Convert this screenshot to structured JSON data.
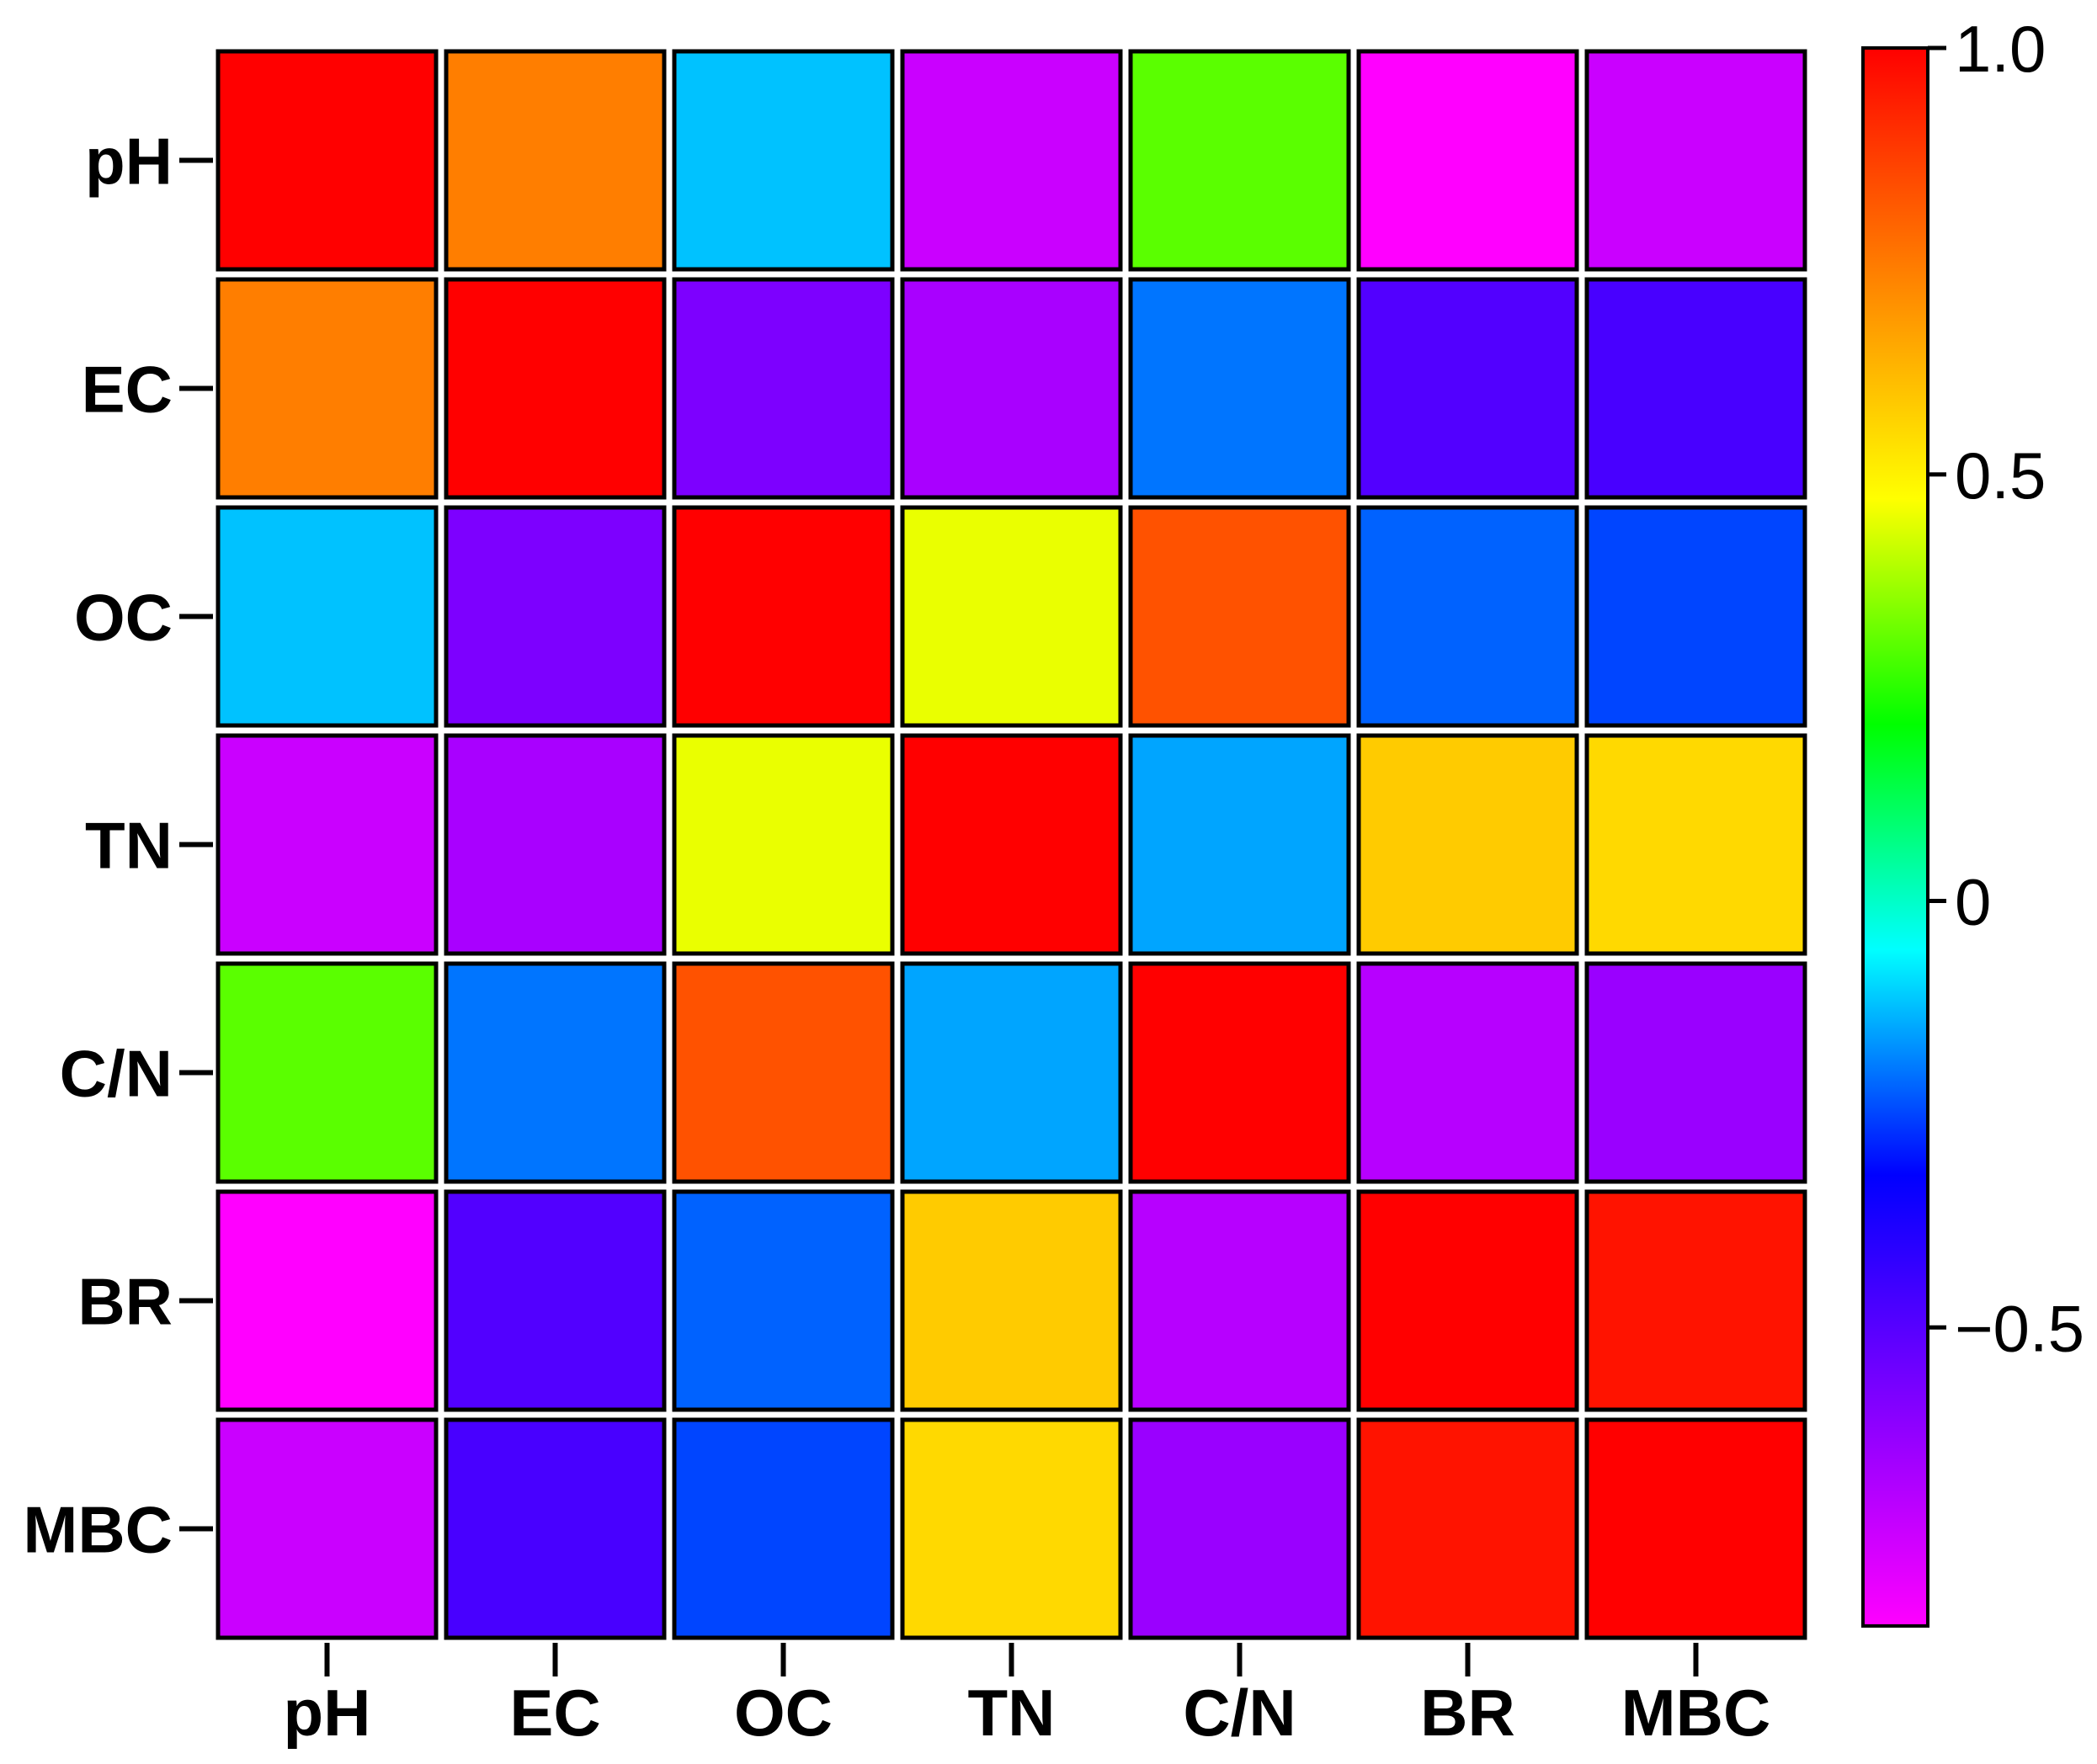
{
  "chart_data": {
    "type": "heatmap",
    "title": "",
    "xlabel": "",
    "ylabel": "",
    "rows": [
      "pH",
      "EC",
      "OC",
      "TN",
      "C/N",
      "BR",
      "MBC"
    ],
    "columns": [
      "pH",
      "EC",
      "OC",
      "TN",
      "C/N",
      "BR",
      "MBC"
    ],
    "values": [
      [
        1.0,
        0.74,
        -0.12,
        -0.74,
        0.3,
        -0.85,
        -0.74
      ],
      [
        0.74,
        1.0,
        -0.58,
        -0.67,
        -0.2,
        -0.49,
        -0.47
      ],
      [
        -0.12,
        -0.58,
        1.0,
        0.45,
        0.83,
        -0.22,
        -0.25
      ],
      [
        -0.74,
        -0.67,
        0.45,
        1.0,
        -0.15,
        0.58,
        0.55
      ],
      [
        0.3,
        -0.2,
        0.83,
        -0.15,
        1.0,
        -0.7,
        -0.64
      ],
      [
        -0.85,
        -0.49,
        -0.22,
        0.58,
        -0.7,
        1.0,
        0.96
      ],
      [
        -0.74,
        -0.47,
        -0.25,
        0.55,
        -0.64,
        0.96,
        1.0
      ]
    ],
    "colorbar": {
      "range": [
        -0.85,
        1.0
      ],
      "ticks": [
        1.0,
        0.5,
        0,
        -0.5
      ],
      "tick_labels": [
        "1.0",
        "0.5",
        "0",
        "−0.5"
      ],
      "colors_high_to_low": [
        "#ff0000",
        "#ff8000",
        "#ffff00",
        "#00ff00",
        "#00ffff",
        "#0000ff",
        "#8000ff",
        "#ff00ff"
      ]
    },
    "grid": false,
    "legend": "colorbar-right"
  }
}
